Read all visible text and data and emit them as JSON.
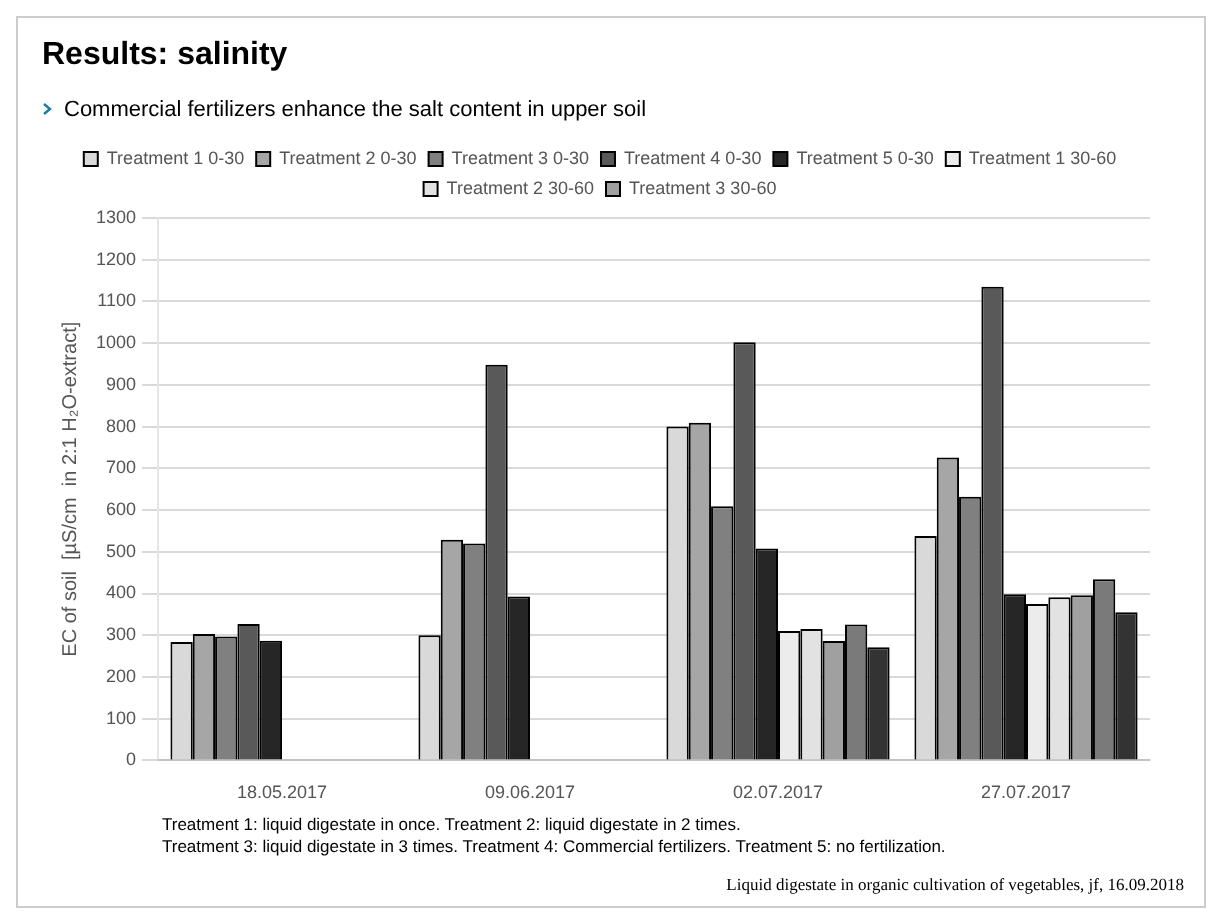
{
  "chart_data": {
    "type": "bar",
    "title": "Results: salinity",
    "subtitle": "Commercial fertilizers enhance the salt content in upper soil",
    "ylabel": "EC of soil  [µS/cm  in 2:1 H₂O-extract]",
    "categories": [
      "18.05.2017",
      "09.06.2017",
      "02.07.2017",
      "27.07.2017"
    ],
    "series": [
      {
        "name": "Treatment 1 0-30",
        "color": "#d9d9d9",
        "values": [
          284,
          300,
          800,
          538
        ]
      },
      {
        "name": "Treatment 2 0-30",
        "color": "#a6a6a6",
        "values": [
          303,
          529,
          809,
          726
        ]
      },
      {
        "name": "Treatment 3 0-30",
        "color": "#808080",
        "values": [
          297,
          520,
          609,
          632
        ]
      },
      {
        "name": "Treatment 4 0-30",
        "color": "#595959",
        "values": [
          327,
          948,
          1002,
          1135
        ]
      },
      {
        "name": "Treatment 5 0-30",
        "color": "#262626",
        "values": [
          287,
          393,
          508,
          398
        ]
      },
      {
        "name": "Treatment 1 30-60",
        "color": "#ececec",
        "values": [
          null,
          null,
          310,
          375
        ]
      },
      {
        "name": "Treatment 2 30-60",
        "color": "#e2e2e2",
        "values": [
          null,
          null,
          315,
          391
        ]
      },
      {
        "name": "Treatment 3 30-60",
        "color": "#a0a0a0",
        "values": [
          null,
          null,
          286,
          396
        ]
      },
      {
        "color": "#7a7a7a",
        "values": [
          null,
          null,
          326,
          434
        ]
      },
      {
        "color": "#333333",
        "values": [
          null,
          null,
          271,
          355
        ]
      }
    ],
    "ylim": [
      0,
      1300
    ],
    "yticks": [
      0,
      100,
      200,
      300,
      400,
      500,
      600,
      700,
      800,
      900,
      1000,
      1100,
      1200,
      1300
    ],
    "grid": "y",
    "legend": "top",
    "annotations": [
      "Treatment 1: liquid digestate in once. Treatment 2: liquid digestate in 2 times.",
      "Treatment 3: liquid digestate in 3 times. Treatment 4: Commercial fertilizers. Treatment 5: no fertilization.",
      "Liquid digestate in organic cultivation of vegetables, jf,  16.09.2018"
    ]
  }
}
